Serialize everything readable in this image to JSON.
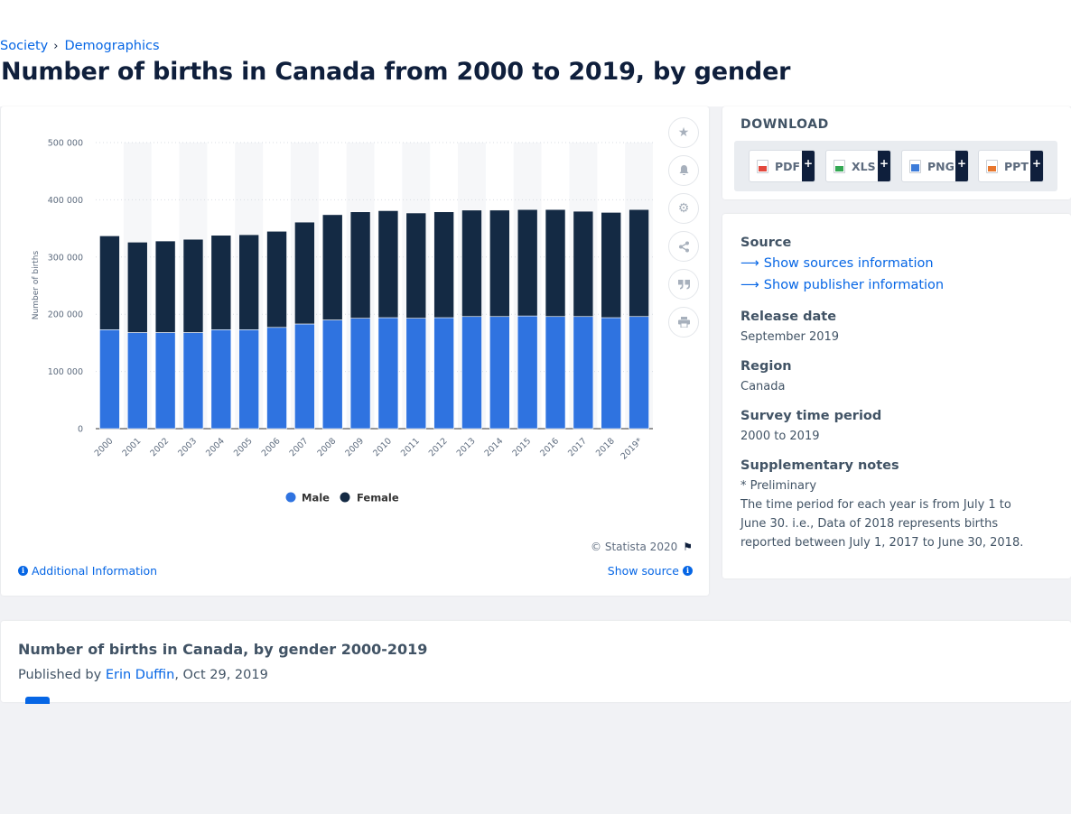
{
  "breadcrumb": {
    "items": [
      "Society",
      "Demographics"
    ]
  },
  "page_title": "Number of births in Canada from 2000 to 2019, by gender",
  "chart_data": {
    "type": "bar",
    "stacked": true,
    "title": "",
    "ylabel": "Number of births",
    "xlabel": "",
    "ylim": [
      0,
      500000
    ],
    "yticks": [
      0,
      100000,
      200000,
      300000,
      400000,
      500000
    ],
    "ytick_labels": [
      "0",
      "100 000",
      "200 000",
      "300 000",
      "400 000",
      "500 000"
    ],
    "categories": [
      "2000",
      "2001",
      "2002",
      "2003",
      "2004",
      "2005",
      "2006",
      "2007",
      "2008",
      "2009",
      "2010",
      "2011",
      "2012",
      "2013",
      "2014",
      "2015",
      "2016",
      "2017",
      "2018",
      "2019*"
    ],
    "series": [
      {
        "name": "Male",
        "color": "#2f73e0",
        "values": [
          173000,
          168000,
          168000,
          168000,
          173000,
          173000,
          177000,
          183000,
          190000,
          193000,
          194000,
          193000,
          194000,
          196000,
          196000,
          197000,
          196000,
          196000,
          194000,
          196000
        ]
      },
      {
        "name": "Female",
        "color": "#142a44",
        "values": [
          164000,
          158000,
          160000,
          163000,
          165000,
          166000,
          168000,
          178000,
          184000,
          186000,
          187000,
          184000,
          185000,
          186000,
          186000,
          186000,
          187000,
          184000,
          184000,
          187000
        ]
      }
    ],
    "legend": "bottom-center",
    "grid": true
  },
  "toolbar": {
    "icons": [
      "star-icon",
      "bell-icon",
      "gear-icon",
      "share-icon",
      "quote-icon",
      "print-icon"
    ]
  },
  "chart_footer": {
    "copyright": "© Statista 2020",
    "additional_info": "Additional Information",
    "show_source": "Show source"
  },
  "download": {
    "title": "DOWNLOAD",
    "buttons": [
      {
        "label": "PDF",
        "color": "#e3483d"
      },
      {
        "label": "XLS",
        "color": "#34a853"
      },
      {
        "label": "PNG",
        "color": "#3b7bd9"
      },
      {
        "label": "PPT",
        "color": "#e8772e"
      }
    ],
    "plus": "+"
  },
  "info": {
    "source_label": "Source",
    "show_sources": "Show sources information",
    "show_publisher": "Show publisher information",
    "release_label": "Release date",
    "release_value": "September 2019",
    "region_label": "Region",
    "region_value": "Canada",
    "period_label": "Survey time period",
    "period_value": "2000 to 2019",
    "notes_label": "Supplementary notes",
    "notes_line1": "* Preliminary",
    "notes_line2": "The time period for each year is from July 1 to June 30. i.e., Data of 2018 represents births reported between July 1, 2017 to June 30, 2018."
  },
  "bottom": {
    "title": "Number of births in Canada, by gender 2000-2019",
    "published_by": "Published by ",
    "author": "Erin Duffin",
    "date": ", Oct 29, 2019"
  }
}
